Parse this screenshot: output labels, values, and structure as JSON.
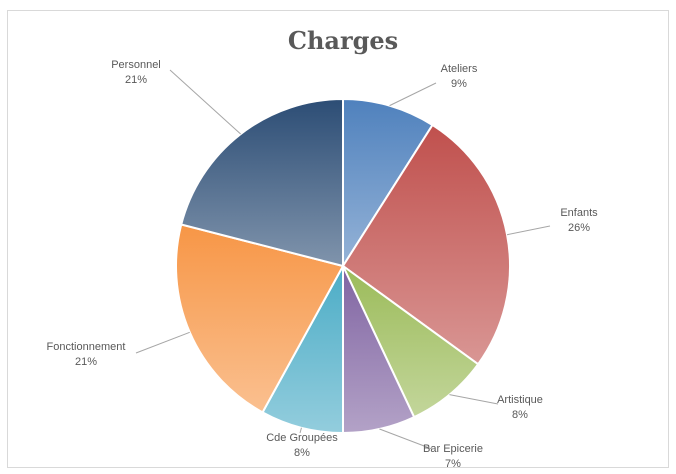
{
  "chart_data": {
    "type": "pie",
    "title": "Charges",
    "categories": [
      "Ateliers",
      "Enfants",
      "Artistique",
      "Bar Epicerie",
      "Cde Groupées",
      "Fonctionnement",
      "Personnel"
    ],
    "values": [
      9,
      26,
      8,
      7,
      8,
      21,
      21
    ],
    "labels": [
      "9%",
      "26%",
      "8%",
      "7%",
      "8%",
      "21%",
      "21%"
    ],
    "colors": [
      "#4f81bd",
      "#c0504d",
      "#9bbb59",
      "#8064a2",
      "#4bacc6",
      "#f79646",
      "#2c4d75"
    ],
    "start_angle_deg": 0,
    "direction": "clockwise",
    "legend": "none"
  }
}
